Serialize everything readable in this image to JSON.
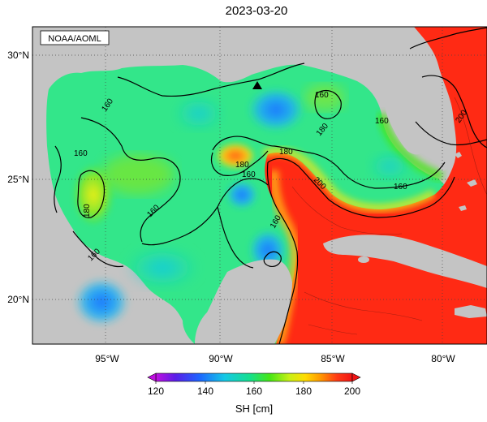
{
  "title": "2023-03-20",
  "credit": "NOAA/AOML",
  "map": {
    "lat_labels": [
      "30°N",
      "25°N",
      "20°N"
    ],
    "lon_labels": [
      "95°W",
      "90°W",
      "85°W",
      "80°W"
    ],
    "contour_labels": [
      "160",
      "160",
      "180",
      "160",
      "160",
      "180",
      "180",
      "160",
      "160",
      "180",
      "160",
      "160",
      "200",
      "200",
      "160"
    ],
    "marker": "triangle",
    "colors": {
      "land": "#c4c4c4",
      "ocean_base": "#33e68a",
      "warm": "#ff2a14",
      "cool": "#1e96ff",
      "contour": "#000000"
    }
  },
  "colorbar": {
    "ticks": [
      "120",
      "140",
      "160",
      "180",
      "200"
    ],
    "label": "SH [cm]",
    "colors": [
      "#c010e0",
      "#5a1ee8",
      "#1e64ff",
      "#14c8e6",
      "#14e08c",
      "#46e614",
      "#c8f014",
      "#ffdc00",
      "#ff9600",
      "#ff3c14",
      "#f01414"
    ]
  }
}
